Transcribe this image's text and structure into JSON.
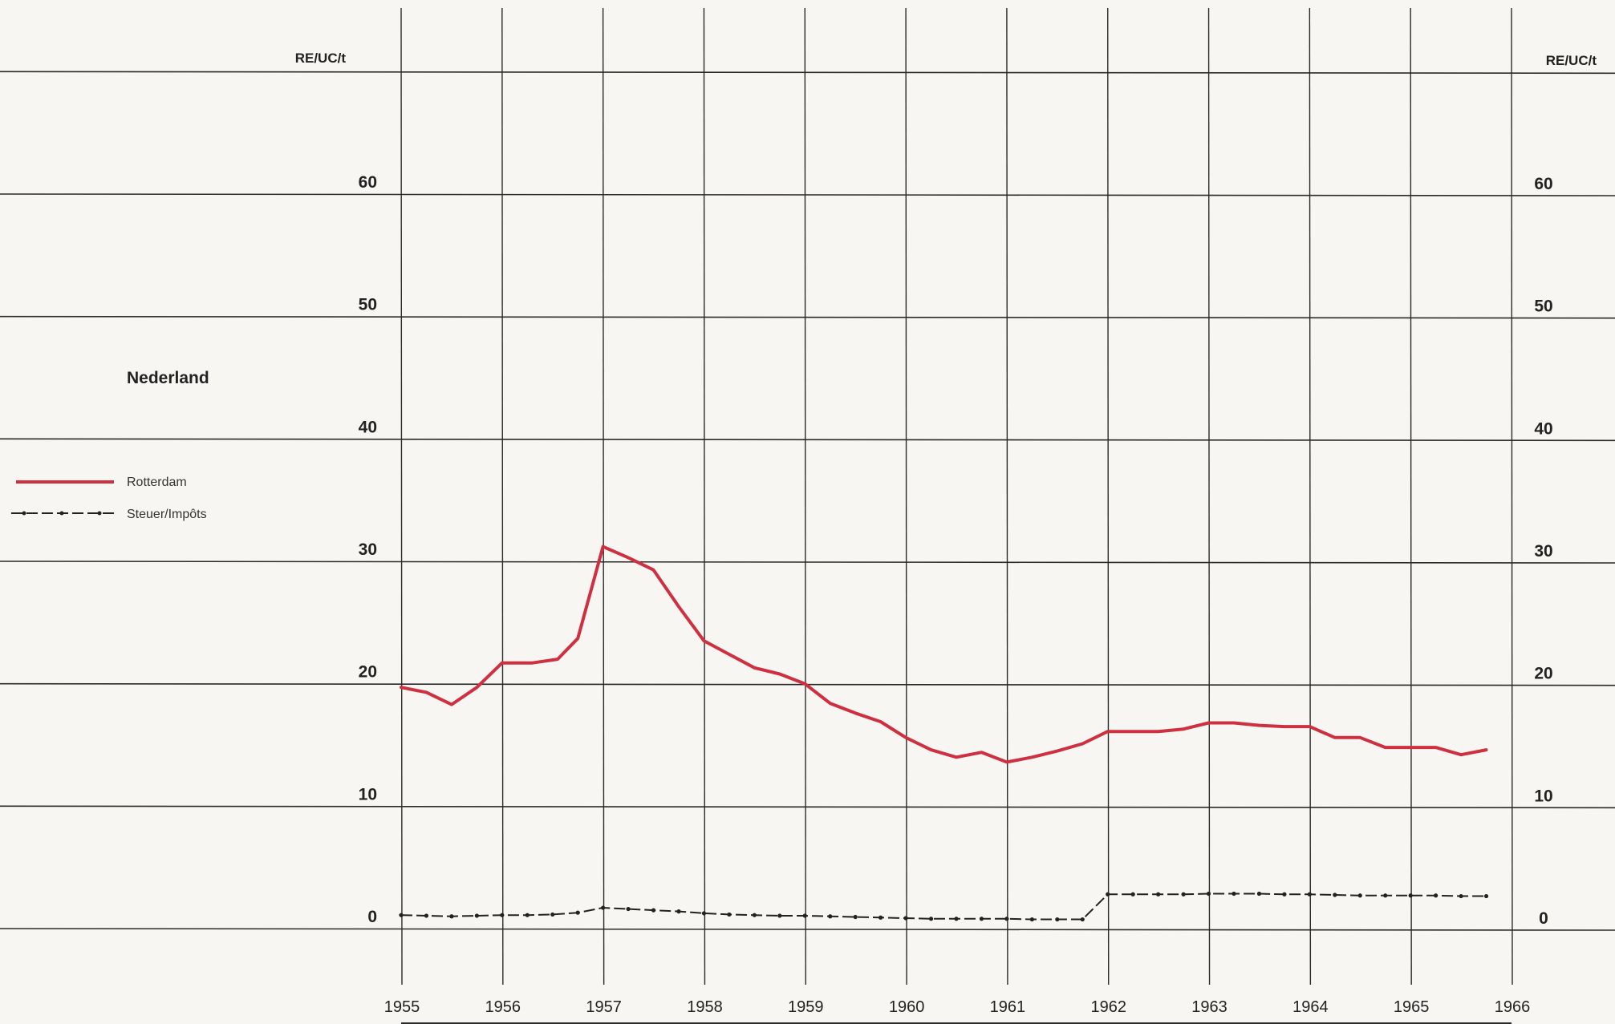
{
  "chart_data": {
    "type": "line",
    "title": "Nederland",
    "y_unit_left": "RE/UC/t",
    "y_unit_right": "RE/UC/t",
    "ylim": [
      -5,
      70
    ],
    "yticks": [
      0,
      10,
      20,
      30,
      40,
      50,
      60
    ],
    "xlim": [
      1955,
      1966
    ],
    "xticks": [
      1955,
      1956,
      1957,
      1958,
      1959,
      1960,
      1961,
      1962,
      1963,
      1964,
      1965,
      1966
    ],
    "grid": true,
    "legend_position": "left",
    "series": [
      {
        "name": "Rotterdam",
        "color": "#cf3040",
        "style": "solid",
        "x": [
          1955.0,
          1955.25,
          1955.5,
          1955.75,
          1956.0,
          1956.3,
          1956.55,
          1956.75,
          1957.0,
          1957.25,
          1957.5,
          1957.75,
          1958.0,
          1958.25,
          1958.5,
          1958.75,
          1959.0,
          1959.25,
          1959.5,
          1959.75,
          1960.0,
          1960.25,
          1960.5,
          1960.75,
          1961.0,
          1961.25,
          1961.5,
          1961.75,
          1962.0,
          1962.25,
          1962.5,
          1962.75,
          1963.0,
          1963.25,
          1963.5,
          1963.75,
          1964.0,
          1964.25,
          1964.5,
          1964.75,
          1965.0,
          1965.25,
          1965.5,
          1965.75
        ],
        "values": [
          19.7,
          19.3,
          18.3,
          19.7,
          21.7,
          21.7,
          22.0,
          23.7,
          31.2,
          30.3,
          29.3,
          26.3,
          23.5,
          22.4,
          21.3,
          20.8,
          20.0,
          18.4,
          17.6,
          16.9,
          15.6,
          14.6,
          14.0,
          14.4,
          13.6,
          14.0,
          14.5,
          15.1,
          16.1,
          16.1,
          16.1,
          16.3,
          16.8,
          16.8,
          16.6,
          16.5,
          16.5,
          15.6,
          15.6,
          14.8,
          14.8,
          14.8,
          14.2,
          14.6
        ]
      },
      {
        "name": "Steuer/Impôts",
        "color": "#222222",
        "style": "dash-dot",
        "x": [
          1955.0,
          1955.25,
          1955.5,
          1955.75,
          1956.0,
          1956.25,
          1956.5,
          1956.75,
          1957.0,
          1957.25,
          1957.5,
          1957.75,
          1958.0,
          1958.25,
          1958.5,
          1958.75,
          1959.0,
          1959.25,
          1959.5,
          1959.75,
          1960.0,
          1960.25,
          1960.5,
          1960.75,
          1961.0,
          1961.25,
          1961.5,
          1961.75,
          1962.0,
          1962.25,
          1962.5,
          1962.75,
          1963.0,
          1963.25,
          1963.5,
          1963.75,
          1964.0,
          1964.25,
          1964.5,
          1964.75,
          1965.0,
          1965.25,
          1965.5,
          1965.75
        ],
        "values": [
          1.1,
          1.05,
          1.0,
          1.05,
          1.1,
          1.1,
          1.15,
          1.3,
          1.7,
          1.6,
          1.5,
          1.4,
          1.25,
          1.15,
          1.1,
          1.05,
          1.05,
          1.0,
          0.95,
          0.9,
          0.85,
          0.8,
          0.8,
          0.8,
          0.8,
          0.75,
          0.75,
          0.75,
          2.8,
          2.8,
          2.8,
          2.8,
          2.85,
          2.85,
          2.85,
          2.8,
          2.8,
          2.75,
          2.7,
          2.7,
          2.7,
          2.7,
          2.65,
          2.65
        ]
      }
    ]
  }
}
